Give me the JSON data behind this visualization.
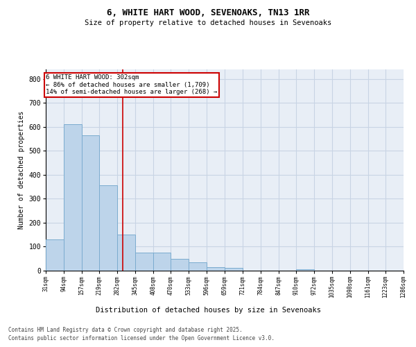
{
  "title": "6, WHITE HART WOOD, SEVENOAKS, TN13 1RR",
  "subtitle": "Size of property relative to detached houses in Sevenoaks",
  "xlabel": "Distribution of detached houses by size in Sevenoaks",
  "ylabel": "Number of detached properties",
  "bar_heights": [
    130,
    610,
    565,
    355,
    150,
    75,
    75,
    50,
    35,
    15,
    12,
    0,
    0,
    0,
    7,
    0,
    0,
    0,
    0,
    0
  ],
  "bin_edges": [
    31,
    94,
    157,
    219,
    282,
    345,
    408,
    470,
    533,
    596,
    659,
    721,
    784,
    847,
    910,
    972,
    1035,
    1098,
    1161,
    1223,
    1286
  ],
  "bar_color": "#bdd4ea",
  "bar_edgecolor": "#7aabcf",
  "red_line_x": 302,
  "annotation_title": "6 WHITE HART WOOD: 302sqm",
  "annotation_line1": "← 86% of detached houses are smaller (1,709)",
  "annotation_line2": "14% of semi-detached houses are larger (268) →",
  "annotation_box_facecolor": "#ffffff",
  "annotation_box_edgecolor": "#cc0000",
  "red_line_color": "#cc0000",
  "ylim": [
    0,
    840
  ],
  "yticks": [
    0,
    100,
    200,
    300,
    400,
    500,
    600,
    700,
    800
  ],
  "grid_color": "#c8d4e4",
  "bg_color": "#e8eef6",
  "footnote1": "Contains HM Land Registry data © Crown copyright and database right 2025.",
  "footnote2": "Contains public sector information licensed under the Open Government Licence v3.0."
}
